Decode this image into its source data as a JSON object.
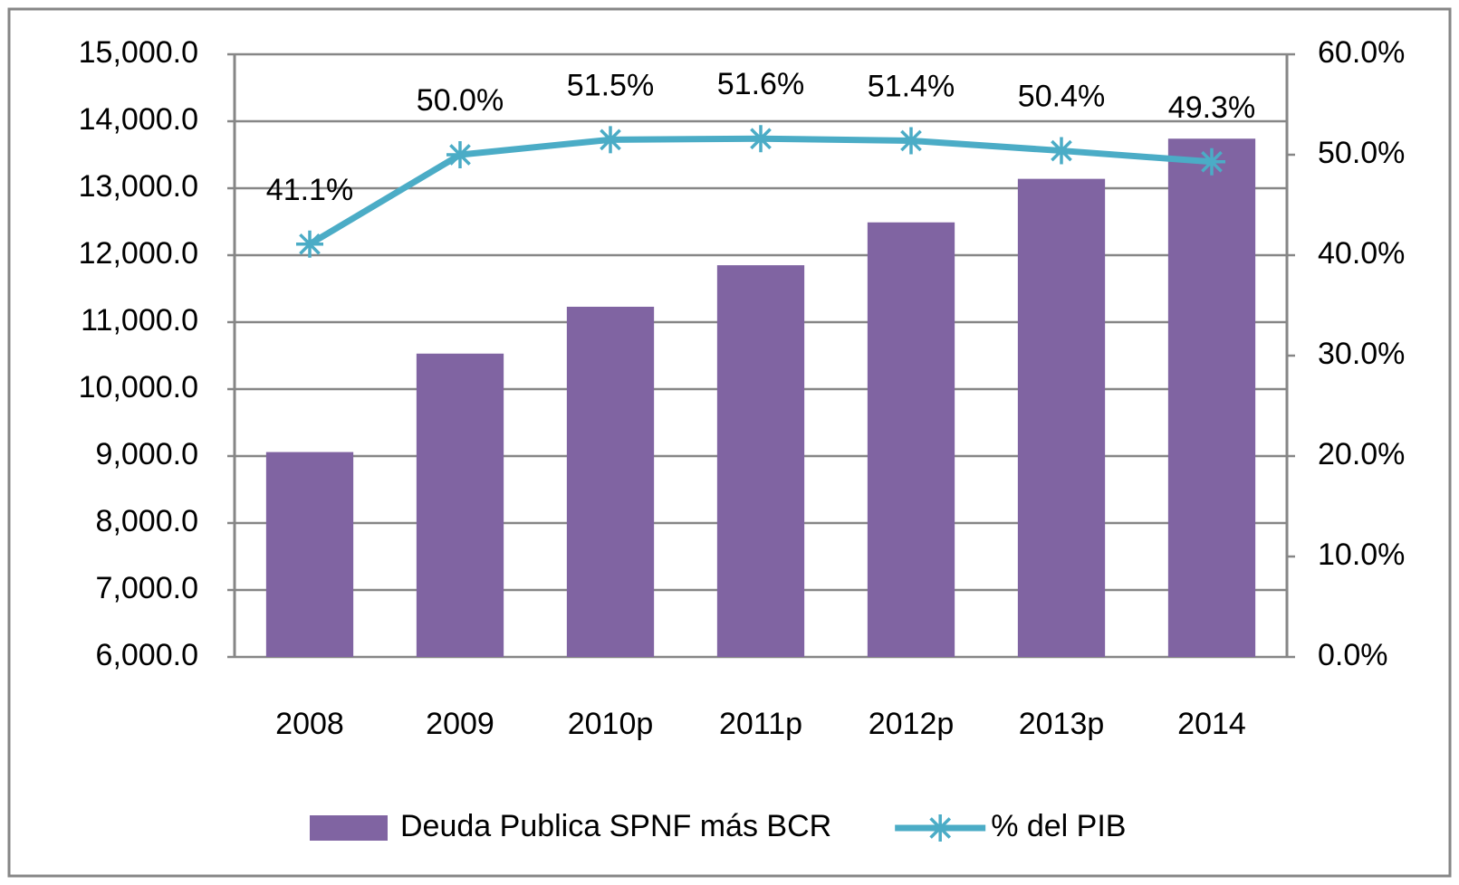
{
  "chart_data": {
    "type": "bar",
    "categories": [
      "2008",
      "2009",
      "2010p",
      "2011p",
      "2012p",
      "2013p",
      "2014"
    ],
    "series": [
      {
        "name": "Deuda Publica SPNF más BCR",
        "type": "bar",
        "color": "#8064a2",
        "values": [
          9060,
          10530,
          11230,
          11850,
          12490,
          13140,
          13740
        ]
      },
      {
        "name": "% del PIB",
        "type": "line",
        "axis": "y2",
        "color": "#4bacc6",
        "values": [
          41.1,
          50.0,
          51.5,
          51.6,
          51.4,
          50.4,
          49.3
        ],
        "value_labels": [
          "41.1%",
          "50.0%",
          "51.5%",
          "51.6%",
          "51.4%",
          "50.4%",
          "49.3%"
        ]
      }
    ],
    "ylim": [
      6000,
      15000
    ],
    "yticks": [
      {
        "value": 6000,
        "label": "6,000.0"
      },
      {
        "value": 7000,
        "label": "7,000.0"
      },
      {
        "value": 8000,
        "label": "8,000.0"
      },
      {
        "value": 9000,
        "label": "9,000.0"
      },
      {
        "value": 10000,
        "label": "10,000.0"
      },
      {
        "value": 11000,
        "label": "11,000.0"
      },
      {
        "value": 12000,
        "label": "12,000.0"
      },
      {
        "value": 13000,
        "label": "13,000.0"
      },
      {
        "value": 14000,
        "label": "14,000.0"
      },
      {
        "value": 15000,
        "label": "15,000.0"
      }
    ],
    "y2lim": [
      0,
      60
    ],
    "y2ticks": [
      {
        "value": 0,
        "label": "0.0%"
      },
      {
        "value": 10,
        "label": "10.0%"
      },
      {
        "value": 20,
        "label": "20.0%"
      },
      {
        "value": 30,
        "label": "30.0%"
      },
      {
        "value": 40,
        "label": "40.0%"
      },
      {
        "value": 50,
        "label": "50.0%"
      },
      {
        "value": 60,
        "label": "60.0%"
      }
    ],
    "grid": true,
    "legend": "bottom"
  }
}
